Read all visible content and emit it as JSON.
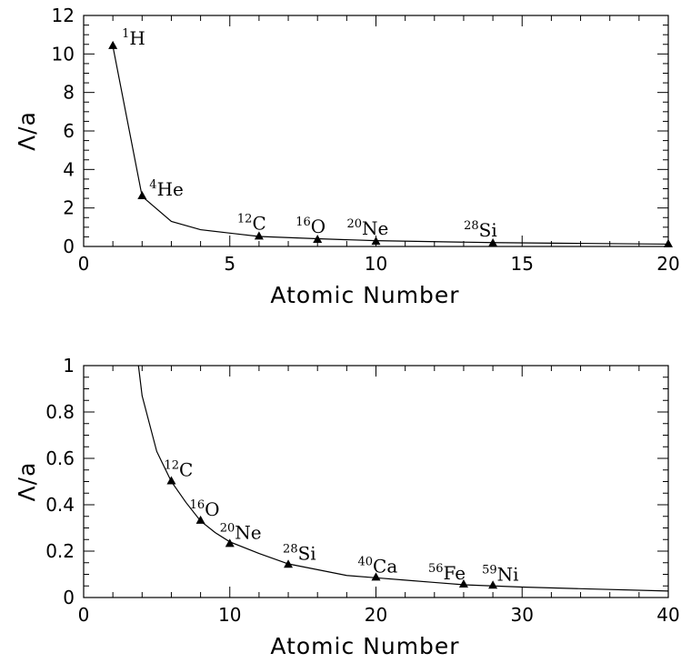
{
  "chart_data": [
    {
      "type": "line",
      "title": "",
      "xlabel": "Atomic Number",
      "ylabel": "Λ/a",
      "xlim": [
        0,
        20
      ],
      "ylim": [
        0,
        12
      ],
      "xticks": [
        0,
        5,
        10,
        15,
        20
      ],
      "yticks": [
        0,
        2,
        4,
        6,
        8,
        10,
        12
      ],
      "grid": false,
      "curve": {
        "x": [
          1,
          2,
          3,
          4,
          6,
          8,
          10,
          14,
          20
        ],
        "y": [
          10.4,
          2.6,
          1.3,
          0.87,
          0.52,
          0.4,
          0.3,
          0.2,
          0.12
        ]
      },
      "markers": [
        {
          "x": 1,
          "y": 10.4,
          "sup": "1",
          "symbol": "H"
        },
        {
          "x": 2,
          "y": 2.6,
          "sup": "4",
          "symbol": "He"
        },
        {
          "x": 6,
          "y": 0.5,
          "sup": "12",
          "symbol": "C"
        },
        {
          "x": 8,
          "y": 0.33,
          "sup": "16",
          "symbol": "O"
        },
        {
          "x": 10,
          "y": 0.23,
          "sup": "20",
          "symbol": "Ne"
        },
        {
          "x": 14,
          "y": 0.14,
          "sup": "28",
          "symbol": "Si"
        },
        {
          "x": 20,
          "y": 0.1,
          "sup": "",
          "symbol": ""
        }
      ]
    },
    {
      "type": "line",
      "title": "",
      "xlabel": "Atomic Number",
      "ylabel": "Λ/a",
      "xlim": [
        0,
        40
      ],
      "ylim": [
        0,
        1
      ],
      "xticks": [
        0,
        10,
        20,
        30,
        40
      ],
      "yticks": [
        0,
        0.2,
        0.4,
        0.6,
        0.8,
        1
      ],
      "grid": false,
      "curve": {
        "x": [
          3.75,
          4,
          5,
          6,
          7,
          8,
          9,
          10,
          12,
          14,
          16,
          18,
          20,
          22,
          24,
          26,
          28,
          30,
          34,
          40
        ],
        "y": [
          1.0,
          0.87,
          0.63,
          0.5,
          0.41,
          0.33,
          0.28,
          0.24,
          0.19,
          0.145,
          0.12,
          0.095,
          0.085,
          0.075,
          0.065,
          0.055,
          0.05,
          0.045,
          0.038,
          0.028
        ]
      },
      "markers": [
        {
          "x": 6,
          "y": 0.5,
          "sup": "12",
          "symbol": "C"
        },
        {
          "x": 8,
          "y": 0.33,
          "sup": "16",
          "symbol": "O"
        },
        {
          "x": 10,
          "y": 0.23,
          "sup": "20",
          "symbol": "Ne"
        },
        {
          "x": 14,
          "y": 0.14,
          "sup": "28",
          "symbol": "Si"
        },
        {
          "x": 20,
          "y": 0.085,
          "sup": "40",
          "symbol": "Ca"
        },
        {
          "x": 26,
          "y": 0.055,
          "sup": "56",
          "symbol": "Fe"
        },
        {
          "x": 28,
          "y": 0.05,
          "sup": "59",
          "symbol": "Ni"
        }
      ]
    }
  ]
}
